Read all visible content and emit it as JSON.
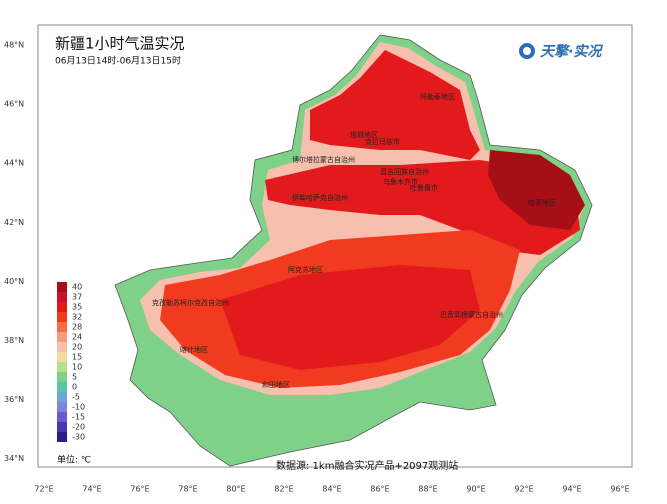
{
  "header": {
    "title": "新疆1小时气温实况",
    "subtitle": "06月13日14时-06月13日15时",
    "logo": "天擎·实况"
  },
  "lat_labels": [
    "48°N",
    "46°N",
    "44°N",
    "42°N",
    "40°N",
    "38°N",
    "36°N",
    "34°N"
  ],
  "lon_labels": [
    "72°E",
    "74°E",
    "76°E",
    "78°E",
    "80°E",
    "82°E",
    "84°E",
    "86°E",
    "88°E",
    "90°E",
    "92°E",
    "94°E",
    "96°E"
  ],
  "legend": {
    "unit": "单位: ℃",
    "items": [
      {
        "value": 40,
        "color": "#a50f15"
      },
      {
        "value": 37,
        "color": "#c8102e"
      },
      {
        "value": 35,
        "color": "#e31a1c"
      },
      {
        "value": 32,
        "color": "#f03b20"
      },
      {
        "value": 28,
        "color": "#f46d43"
      },
      {
        "value": 24,
        "color": "#f79c7c"
      },
      {
        "value": 20,
        "color": "#f7bfae"
      },
      {
        "value": 15,
        "color": "#f3d9a4"
      },
      {
        "value": 10,
        "color": "#b8e08a"
      },
      {
        "value": 5,
        "color": "#7fd18a"
      },
      {
        "value": 0,
        "color": "#57c7a2"
      },
      {
        "value": -5,
        "color": "#6aa7d8"
      },
      {
        "value": -10,
        "color": "#7c84e0"
      },
      {
        "value": -15,
        "color": "#6a5ad0"
      },
      {
        "value": -20,
        "color": "#4b34b8"
      },
      {
        "value": -30,
        "color": "#2e1a8c"
      }
    ]
  },
  "regions": [
    "阿勒泰地区",
    "塔城地区",
    "克拉玛依市",
    "博尔塔拉蒙古自治州",
    "昌吉回族自治州",
    "乌鲁木齐市",
    "吐鲁番市",
    "哈密地区",
    "伊犁哈萨克自治州",
    "巴音郭楞蒙古自治州",
    "阿克苏地区",
    "克孜勒苏柯尔克孜自治州",
    "喀什地区",
    "和田地区"
  ],
  "source": "数据源: 1km融合实况产品+2097观测站"
}
